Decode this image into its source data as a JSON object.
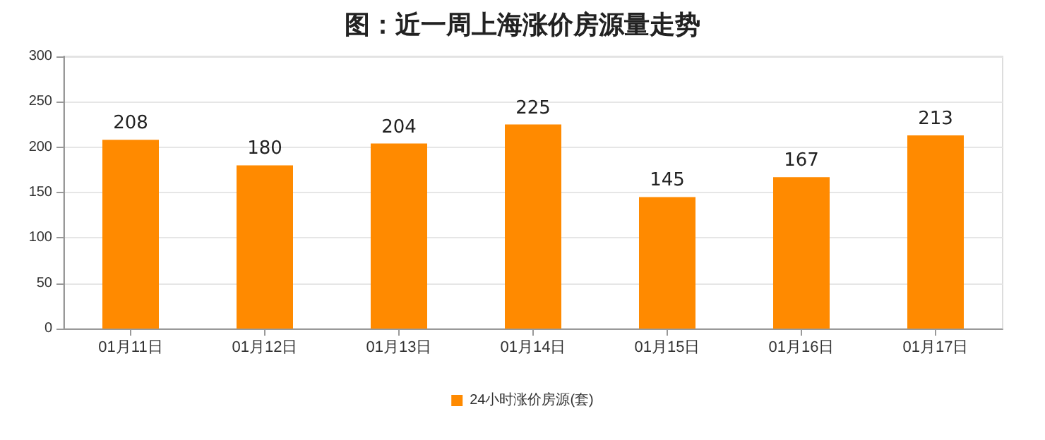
{
  "chart_data": {
    "type": "bar",
    "title": "图：近一周上海涨价房源量走势",
    "categories": [
      "01月11日",
      "01月12日",
      "01月13日",
      "01月14日",
      "01月15日",
      "01月16日",
      "01月17日"
    ],
    "series": [
      {
        "name": "24小时涨价房源(套)",
        "color": "#ff8a00",
        "values": [
          208,
          180,
          204,
          225,
          145,
          167,
          213
        ]
      }
    ],
    "ylim": [
      0,
      300
    ],
    "yticks": [
      0,
      50,
      100,
      150,
      200,
      250,
      300
    ],
    "grid": "y",
    "legend": "bottom",
    "data_labels": true
  }
}
